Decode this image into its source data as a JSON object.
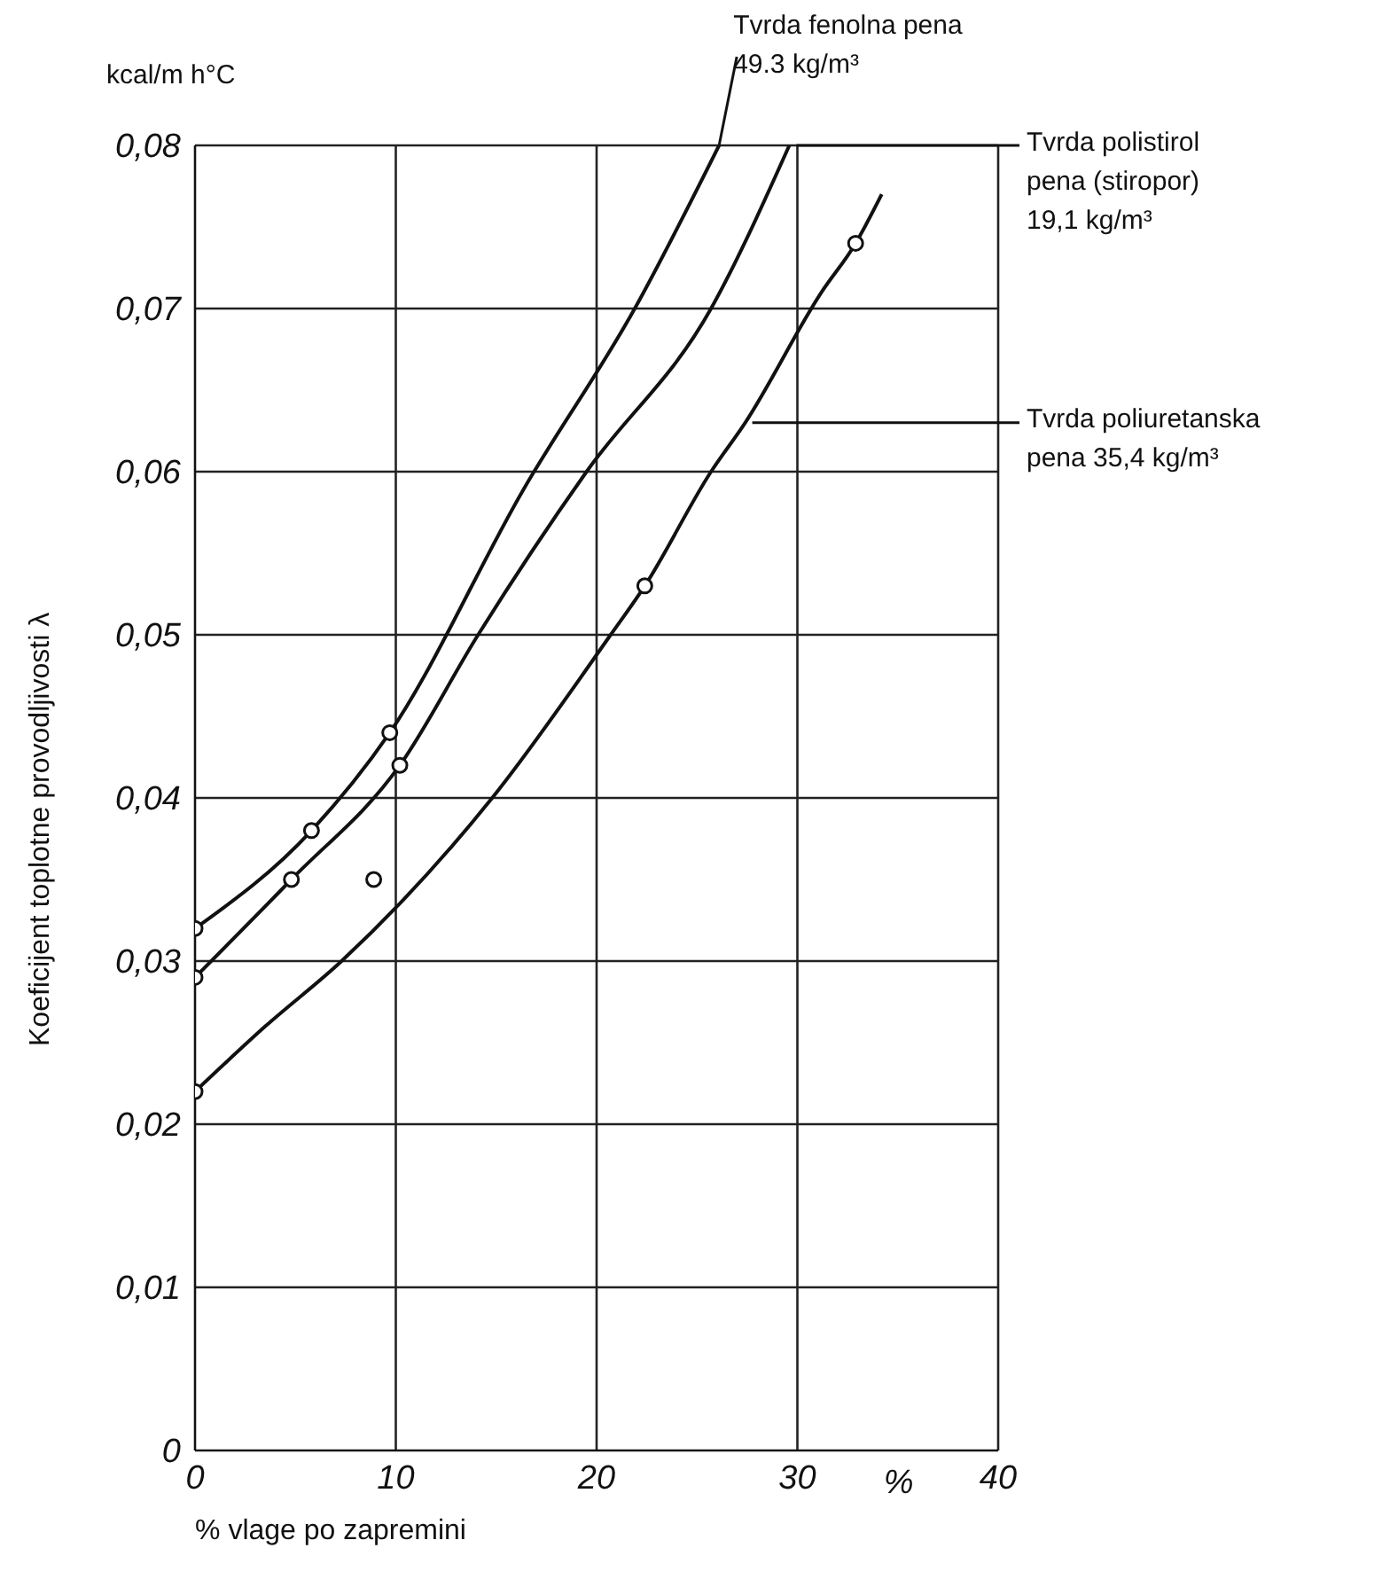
{
  "chart_data": {
    "type": "line",
    "xlabel": "% vlage po zapremini",
    "ylabel": "Koeficijent toplotne provodljivosti λ",
    "annotations": [
      "kcal/m h°C",
      "%"
    ],
    "xlim": [
      0,
      40
    ],
    "xticks": [
      0,
      10,
      20,
      30,
      40
    ],
    "ylim": [
      0,
      0.08
    ],
    "yticks": [
      0,
      {
        "value": 0.01,
        "label": "0,01"
      },
      {
        "value": 0.02,
        "label": "0,02"
      },
      {
        "value": 0.03,
        "label": "0,03"
      },
      {
        "value": 0.04,
        "label": "0,04"
      },
      {
        "value": 0.05,
        "label": "0,05"
      },
      {
        "value": 0.06,
        "label": "0,06"
      },
      {
        "value": 0.07,
        "label": "0,07"
      },
      {
        "value": 0.08,
        "label": "0,08"
      }
    ],
    "grid": true,
    "legend": false,
    "marker": "none",
    "line_style": "solid",
    "series": [
      {
        "name": "Tvrda fenolna pena 49.3 kg/m³",
        "color": "#111111",
        "x": [
          0,
          5.8,
          9.7,
          16.4,
          21.9,
          26.1
        ],
        "values": [
          0.032,
          0.038,
          0.044,
          0.059,
          0.07,
          0.08
        ]
      },
      {
        "name": "Tvrda polistirol pena (stiropor) 19,1 kg/m³",
        "color": "#111111",
        "x": [
          0,
          4.8,
          10.2,
          14.1,
          19.5,
          25.7,
          29.6
        ],
        "values": [
          0.029,
          0.035,
          0.042,
          0.05,
          0.06,
          0.07,
          0.08
        ]
      },
      {
        "name": "Tvrda poliuretanska pena 35,4 kg/m³",
        "color": "#111111",
        "x": [
          0,
          3.5,
          7.3,
          14.8,
          20.7,
          22.4,
          25.7,
          27.4,
          31.2,
          32.9,
          34.2
        ],
        "values": [
          0.022,
          0.026,
          0.03,
          0.04,
          0.05,
          0.053,
          0.06,
          0.063,
          0.071,
          0.074,
          0.077
        ]
      },
      {
        "type": "scatter",
        "marker": "circle",
        "color": "#111111",
        "x": [
          0,
          5.8,
          9.7,
          0,
          4.8,
          10.2,
          0,
          22.4,
          32.9,
          8.9
        ],
        "values": [
          0.032,
          0.038,
          0.044,
          0.029,
          0.035,
          0.042,
          0.022,
          0.053,
          0.074,
          0.035
        ]
      }
    ]
  }
}
